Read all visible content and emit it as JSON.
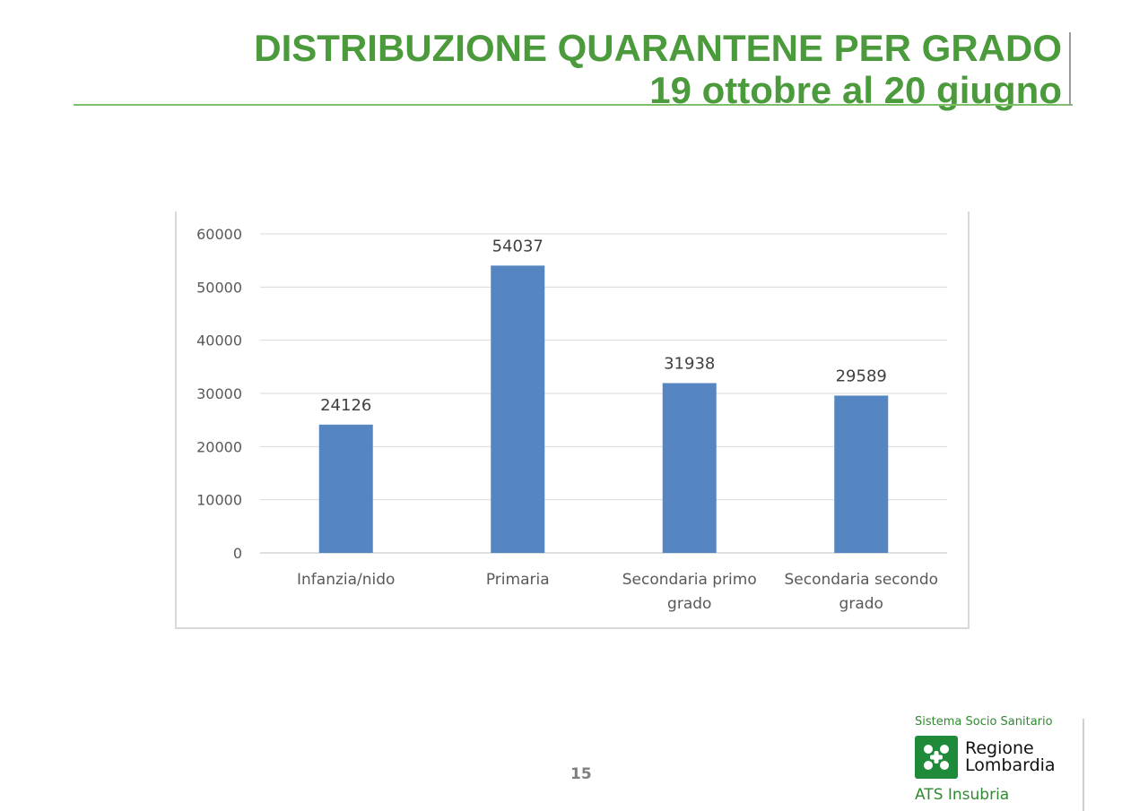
{
  "slide": {
    "title_line1": "DISTRIBUZIONE QUARANTENE PER GRADO",
    "title_line2": "19 ottobre al 20 giugno",
    "page_number": "15"
  },
  "logo": {
    "top_text": "Sistema Socio Sanitario",
    "name_line1": "Regione",
    "name_line2": "Lombardia",
    "bottom_text": "ATS Insubria",
    "color": "#1f8a3a"
  },
  "chart_data": {
    "type": "bar",
    "categories": [
      [
        "Infanzia/nido"
      ],
      [
        "Primaria"
      ],
      [
        "Secondaria primo",
        "grado"
      ],
      [
        "Secondaria secondo",
        "grado"
      ]
    ],
    "values": [
      24126,
      54037,
      31938,
      29589
    ],
    "title": "",
    "xlabel": "",
    "ylabel": "",
    "ylim": [
      0,
      60000
    ],
    "yticks": [
      0,
      10000,
      20000,
      30000,
      40000,
      50000,
      60000
    ],
    "grid": true,
    "legend": "none",
    "bar_color": "#5586c1",
    "show_data_labels": true
  }
}
